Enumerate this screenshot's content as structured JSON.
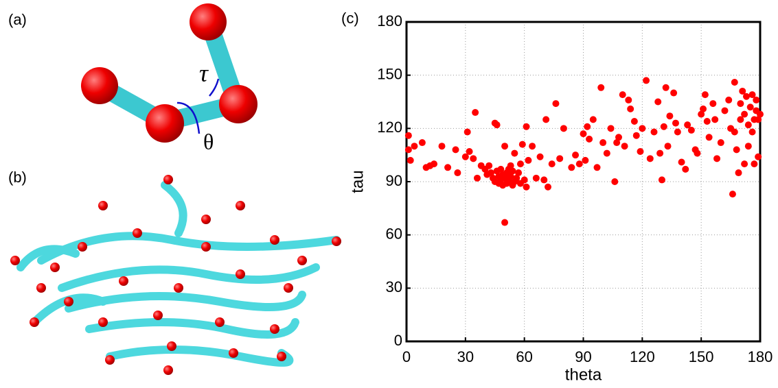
{
  "panels": {
    "a": {
      "label": "(a)",
      "tau_symbol": "τ",
      "theta_symbol": "θ"
    },
    "b": {
      "label": "(b)"
    },
    "c": {
      "label": "(c)"
    }
  },
  "chart_data": {
    "type": "scatter",
    "xlabel": "theta",
    "ylabel": "tau",
    "color": "#ff0000",
    "grid": true,
    "xlim": [
      0,
      180
    ],
    "ylim": [
      0,
      180
    ],
    "xticks": [
      0,
      30,
      60,
      90,
      120,
      150,
      180
    ],
    "yticks": [
      0,
      30,
      60,
      90,
      120,
      150,
      180
    ],
    "x": [
      1,
      1,
      2,
      4,
      8,
      10,
      12,
      14,
      18,
      21,
      25,
      26,
      30,
      31,
      32,
      34,
      35,
      36,
      38,
      40,
      41,
      42,
      43,
      44,
      45,
      45,
      46,
      46,
      47,
      47,
      48,
      48,
      49,
      49,
      50,
      50,
      50,
      51,
      51,
      52,
      52,
      53,
      53,
      54,
      54,
      55,
      55,
      56,
      57,
      58,
      58,
      59,
      60,
      61,
      61,
      62,
      64,
      66,
      68,
      70,
      71,
      72,
      74,
      76,
      78,
      80,
      84,
      86,
      88,
      90,
      91,
      92,
      93,
      95,
      97,
      99,
      100,
      102,
      104,
      106,
      107,
      108,
      110,
      111,
      113,
      114,
      116,
      117,
      119,
      120,
      122,
      124,
      126,
      128,
      129,
      130,
      131,
      132,
      133,
      134,
      136,
      137,
      138,
      140,
      142,
      143,
      145,
      147,
      148,
      150,
      151,
      152,
      153,
      154,
      156,
      157,
      158,
      160,
      162,
      164,
      165,
      166,
      167,
      167,
      168,
      169,
      170,
      170,
      171,
      172,
      172,
      173,
      174,
      174,
      175,
      176,
      176,
      177,
      177,
      178,
      178,
      179,
      179,
      180
    ],
    "values": [
      116,
      108,
      102,
      110,
      112,
      98,
      99,
      100,
      110,
      98,
      108,
      95,
      104,
      118,
      107,
      103,
      129,
      92,
      99,
      97,
      94,
      99,
      95,
      92,
      123,
      90,
      96,
      122,
      93,
      89,
      97,
      91,
      94,
      88,
      110,
      67,
      92,
      95,
      89,
      97,
      91,
      99,
      93,
      88,
      96,
      90,
      106,
      92,
      95,
      100,
      89,
      111,
      91,
      87,
      121,
      102,
      110,
      92,
      104,
      91,
      125,
      87,
      100,
      134,
      103,
      120,
      98,
      105,
      100,
      117,
      102,
      121,
      114,
      125,
      98,
      143,
      112,
      106,
      120,
      90,
      112,
      115,
      139,
      110,
      136,
      131,
      124,
      116,
      107,
      120,
      147,
      103,
      118,
      135,
      106,
      91,
      121,
      143,
      110,
      127,
      140,
      123,
      118,
      101,
      97,
      122,
      119,
      108,
      106,
      128,
      131,
      139,
      124,
      115,
      134,
      125,
      103,
      112,
      130,
      136,
      120,
      83,
      146,
      118,
      108,
      95,
      134,
      125,
      141,
      100,
      128,
      138,
      122,
      110,
      132,
      139,
      118,
      125,
      100,
      130,
      136,
      125,
      104,
      128
    ]
  }
}
